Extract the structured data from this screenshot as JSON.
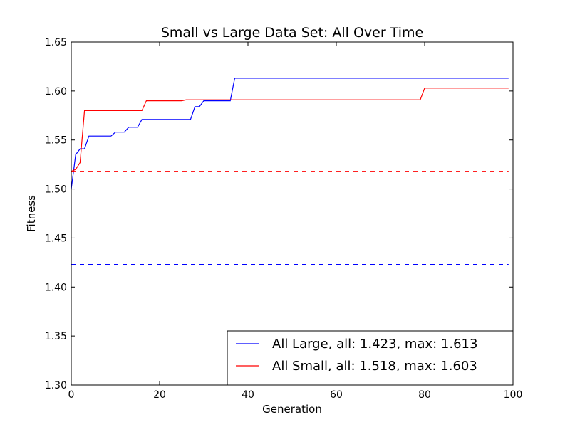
{
  "chart_data": {
    "type": "line",
    "title": "Small vs Large Data Set: All Over Time",
    "xlabel": "Generation",
    "ylabel": "Fitness",
    "xlim": [
      0,
      100
    ],
    "ylim": [
      1.3,
      1.65
    ],
    "xticks": [
      0,
      20,
      40,
      60,
      80,
      100
    ],
    "xtick_labels": [
      "0",
      "20",
      "40",
      "60",
      "80",
      "100"
    ],
    "yticks": [
      1.3,
      1.35,
      1.4,
      1.45,
      1.5,
      1.55,
      1.6,
      1.65
    ],
    "ytick_labels": [
      "1.30",
      "1.35",
      "1.40",
      "1.45",
      "1.50",
      "1.55",
      "1.60",
      "1.65"
    ],
    "grid": false,
    "legend_position": "lower-right",
    "series": [
      {
        "name": "All Large, all: 1.423, max: 1.613",
        "color": "#0000ff",
        "style": "solid",
        "x": [
          0,
          1,
          2,
          3,
          4,
          9,
          10,
          12,
          13,
          15,
          16,
          27,
          28,
          29,
          30,
          36,
          37,
          99
        ],
        "y": [
          1.5,
          1.535,
          1.541,
          1.541,
          1.554,
          1.554,
          1.558,
          1.558,
          1.563,
          1.563,
          1.571,
          1.571,
          1.584,
          1.584,
          1.59,
          1.59,
          1.613,
          1.613
        ]
      },
      {
        "name": "All Small, all: 1.518, max: 1.603",
        "color": "#ff0000",
        "style": "solid",
        "x": [
          0,
          1,
          2,
          3,
          16,
          17,
          25,
          26,
          37,
          79,
          80,
          99
        ],
        "y": [
          1.518,
          1.52,
          1.527,
          1.58,
          1.58,
          1.59,
          1.59,
          1.591,
          1.591,
          1.591,
          1.603,
          1.603
        ]
      },
      {
        "color": "#ff0000",
        "style": "dashed",
        "x": [
          0,
          99
        ],
        "y": [
          1.518,
          1.518
        ]
      },
      {
        "color": "#0000ff",
        "style": "dashed",
        "x": [
          0,
          99
        ],
        "y": [
          1.423,
          1.423
        ]
      }
    ]
  }
}
